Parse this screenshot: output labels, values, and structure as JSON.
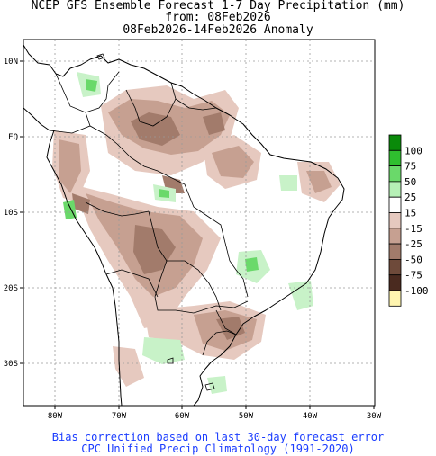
{
  "header": {
    "line1": "NCEP GFS Ensemble Forecast 1-7 Day Precipitation (mm)",
    "line2": "from: 08Feb2026",
    "line3": "08Feb2026-14Feb2026 Anomaly"
  },
  "footer": {
    "line1": "Bias correction based on last 30-day forecast error",
    "line2": "CPC Unified Precip Climatology (1991-2020)"
  },
  "axes": {
    "lon_labels": [
      "80W",
      "70W",
      "60W",
      "50W",
      "40W",
      "30W"
    ],
    "lat_labels": [
      "10N",
      "EQ",
      "10S",
      "20S",
      "30S"
    ]
  },
  "legend": {
    "items": [
      {
        "label": "100",
        "color": "#0a8a0a"
      },
      {
        "label": "75",
        "color": "#2fbf2f"
      },
      {
        "label": "50",
        "color": "#6ad96a"
      },
      {
        "label": "25",
        "color": "#b6f0b6"
      },
      {
        "label": "15",
        "color": "#ffffff"
      },
      {
        "label": "-15",
        "color": "#e6c9bf"
      },
      {
        "label": "-25",
        "color": "#c6a091"
      },
      {
        "label": "-50",
        "color": "#a27b6b"
      },
      {
        "label": "-75",
        "color": "#6e4a3a"
      },
      {
        "label": "-100",
        "color": "#4a2a1f"
      },
      {
        "label": "",
        "color": "#fff5b0"
      }
    ]
  },
  "colors": {
    "dry_light": "#e6c9bf",
    "dry_medium": "#c6a091",
    "dry_dark": "#a27b6b",
    "wet_light": "#c8f2c8",
    "wet_medium": "#6ad96a",
    "wet_dark": "#2fbf2f"
  }
}
